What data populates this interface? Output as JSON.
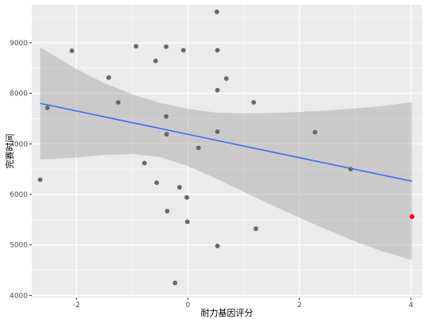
{
  "chart_data": {
    "type": "scatter",
    "title": "",
    "xlabel": "耐力基因评分",
    "ylabel": "完赛时间",
    "xlim": [
      -2.8,
      4.2
    ],
    "ylim": [
      3960,
      9750
    ],
    "x_major_ticks": [
      -2,
      0,
      2,
      4
    ],
    "x_minor_ticks": [
      -1,
      1,
      3
    ],
    "y_major_ticks": [
      4000,
      5000,
      6000,
      7000,
      8000,
      9000
    ],
    "y_minor_ticks": [
      4500,
      5500,
      6500,
      7500,
      8500,
      9500
    ],
    "x_tick_labels": [
      "-2",
      "0",
      "2",
      "4"
    ],
    "y_tick_labels": [
      "4000",
      "5000",
      "6000",
      "7000",
      "8000",
      "9000"
    ],
    "grid": true,
    "panel_background": "#ebebeb",
    "point_color": "#666666",
    "highlight_color": "#ff0000",
    "line_color": "#3366ff",
    "ribbon_color": "#999999",
    "points": [
      {
        "x": -2.65,
        "y": 6290
      },
      {
        "x": -2.52,
        "y": 7710
      },
      {
        "x": -2.08,
        "y": 8840
      },
      {
        "x": -1.42,
        "y": 8310
      },
      {
        "x": -1.25,
        "y": 7820
      },
      {
        "x": -0.93,
        "y": 8930
      },
      {
        "x": -0.78,
        "y": 6620
      },
      {
        "x": -0.58,
        "y": 8640
      },
      {
        "x": -0.56,
        "y": 6230
      },
      {
        "x": -0.39,
        "y": 8920
      },
      {
        "x": -0.39,
        "y": 7540
      },
      {
        "x": -0.38,
        "y": 7190
      },
      {
        "x": -0.37,
        "y": 5670
      },
      {
        "x": -0.23,
        "y": 4250
      },
      {
        "x": -0.15,
        "y": 6140
      },
      {
        "x": -0.08,
        "y": 8850
      },
      {
        "x": -0.02,
        "y": 5940
      },
      {
        "x": -0.01,
        "y": 5460
      },
      {
        "x": 0.19,
        "y": 6920
      },
      {
        "x": 0.52,
        "y": 9610
      },
      {
        "x": 0.53,
        "y": 8850
      },
      {
        "x": 0.53,
        "y": 8060
      },
      {
        "x": 0.53,
        "y": 7240
      },
      {
        "x": 0.53,
        "y": 4980
      },
      {
        "x": 0.69,
        "y": 8290
      },
      {
        "x": 1.18,
        "y": 7820
      },
      {
        "x": 1.22,
        "y": 5320
      },
      {
        "x": 2.28,
        "y": 7230
      },
      {
        "x": 2.92,
        "y": 6500
      }
    ],
    "highlight_points": [
      {
        "x": 4.02,
        "y": 5560
      }
    ],
    "fit_line": {
      "x": [
        -2.65,
        4.02
      ],
      "y": [
        7800,
        6260
      ]
    },
    "confidence_band": {
      "x": [
        -2.65,
        -2.0,
        -1.5,
        -1.0,
        -0.5,
        0.0,
        0.5,
        1.0,
        1.5,
        2.0,
        2.5,
        3.0,
        3.5,
        4.02
      ],
      "upper": [
        8910,
        8480,
        8200,
        7980,
        7810,
        7690,
        7620,
        7600,
        7610,
        7630,
        7660,
        7700,
        7750,
        7820
      ],
      "lower": [
        6690,
        6730,
        6780,
        6800,
        6740,
        6560,
        6320,
        6050,
        5790,
        5540,
        5300,
        5070,
        4870,
        4700
      ]
    }
  }
}
